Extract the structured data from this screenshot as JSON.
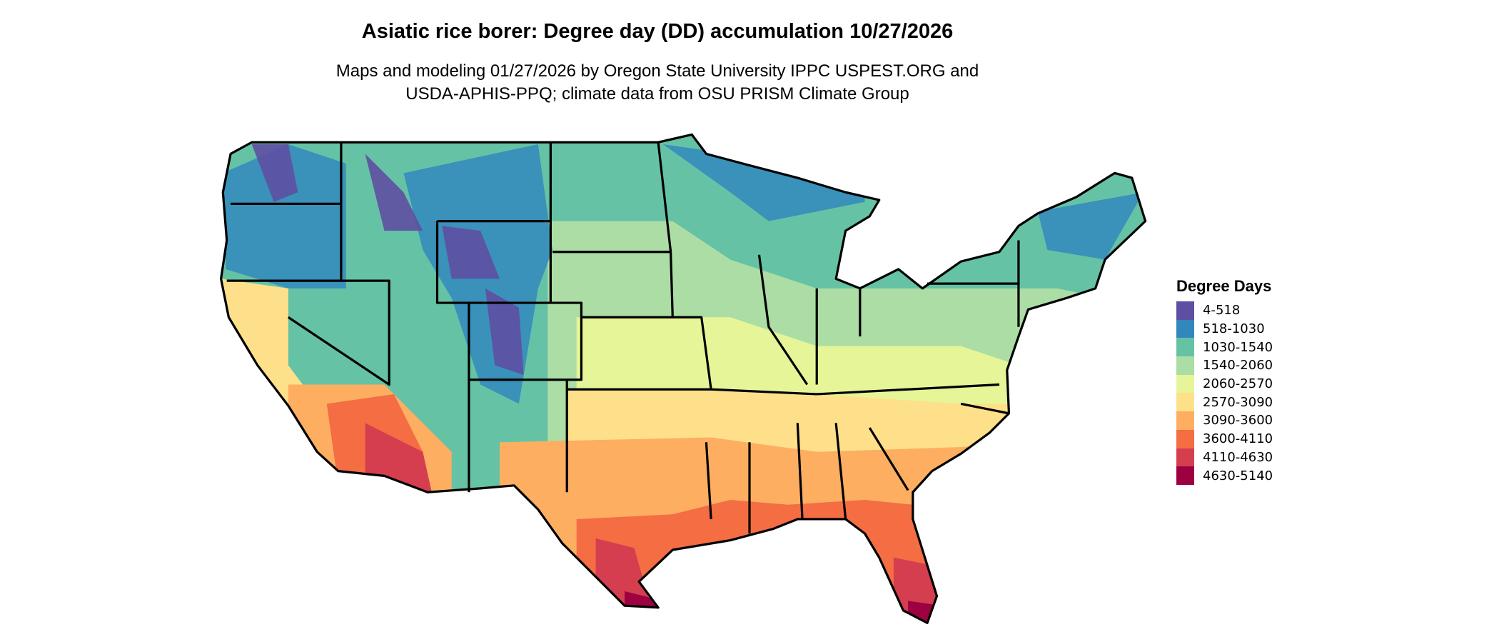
{
  "chart_data": {
    "type": "heatmap",
    "title": "Asiatic rice borer: Degree day (DD) accumulation 10/27/2026",
    "subtitle_lines": [
      "Maps and modeling 01/27/2026 by Oregon State University IPPC USPEST.ORG and",
      "USDA-APHIS-PPQ; climate data from OSU PRISM Climate Group"
    ],
    "legend": {
      "title": "Degree Days",
      "position": "right",
      "bins": [
        {
          "label": "4-518",
          "color": "#5e4fa2"
        },
        {
          "label": "518-1030",
          "color": "#3288bd"
        },
        {
          "label": "1030-1540",
          "color": "#66c2a5"
        },
        {
          "label": "1540-2060",
          "color": "#abdda4"
        },
        {
          "label": "2060-2570",
          "color": "#e6f598"
        },
        {
          "label": "2570-3090",
          "color": "#fee08b"
        },
        {
          "label": "3090-3600",
          "color": "#fdae61"
        },
        {
          "label": "3600-4110",
          "color": "#f46d43"
        },
        {
          "label": "4110-4630",
          "color": "#d53e4f"
        },
        {
          "label": "4630-5140",
          "color": "#9e0142"
        }
      ]
    },
    "map_region": "Contiguous United States"
  }
}
